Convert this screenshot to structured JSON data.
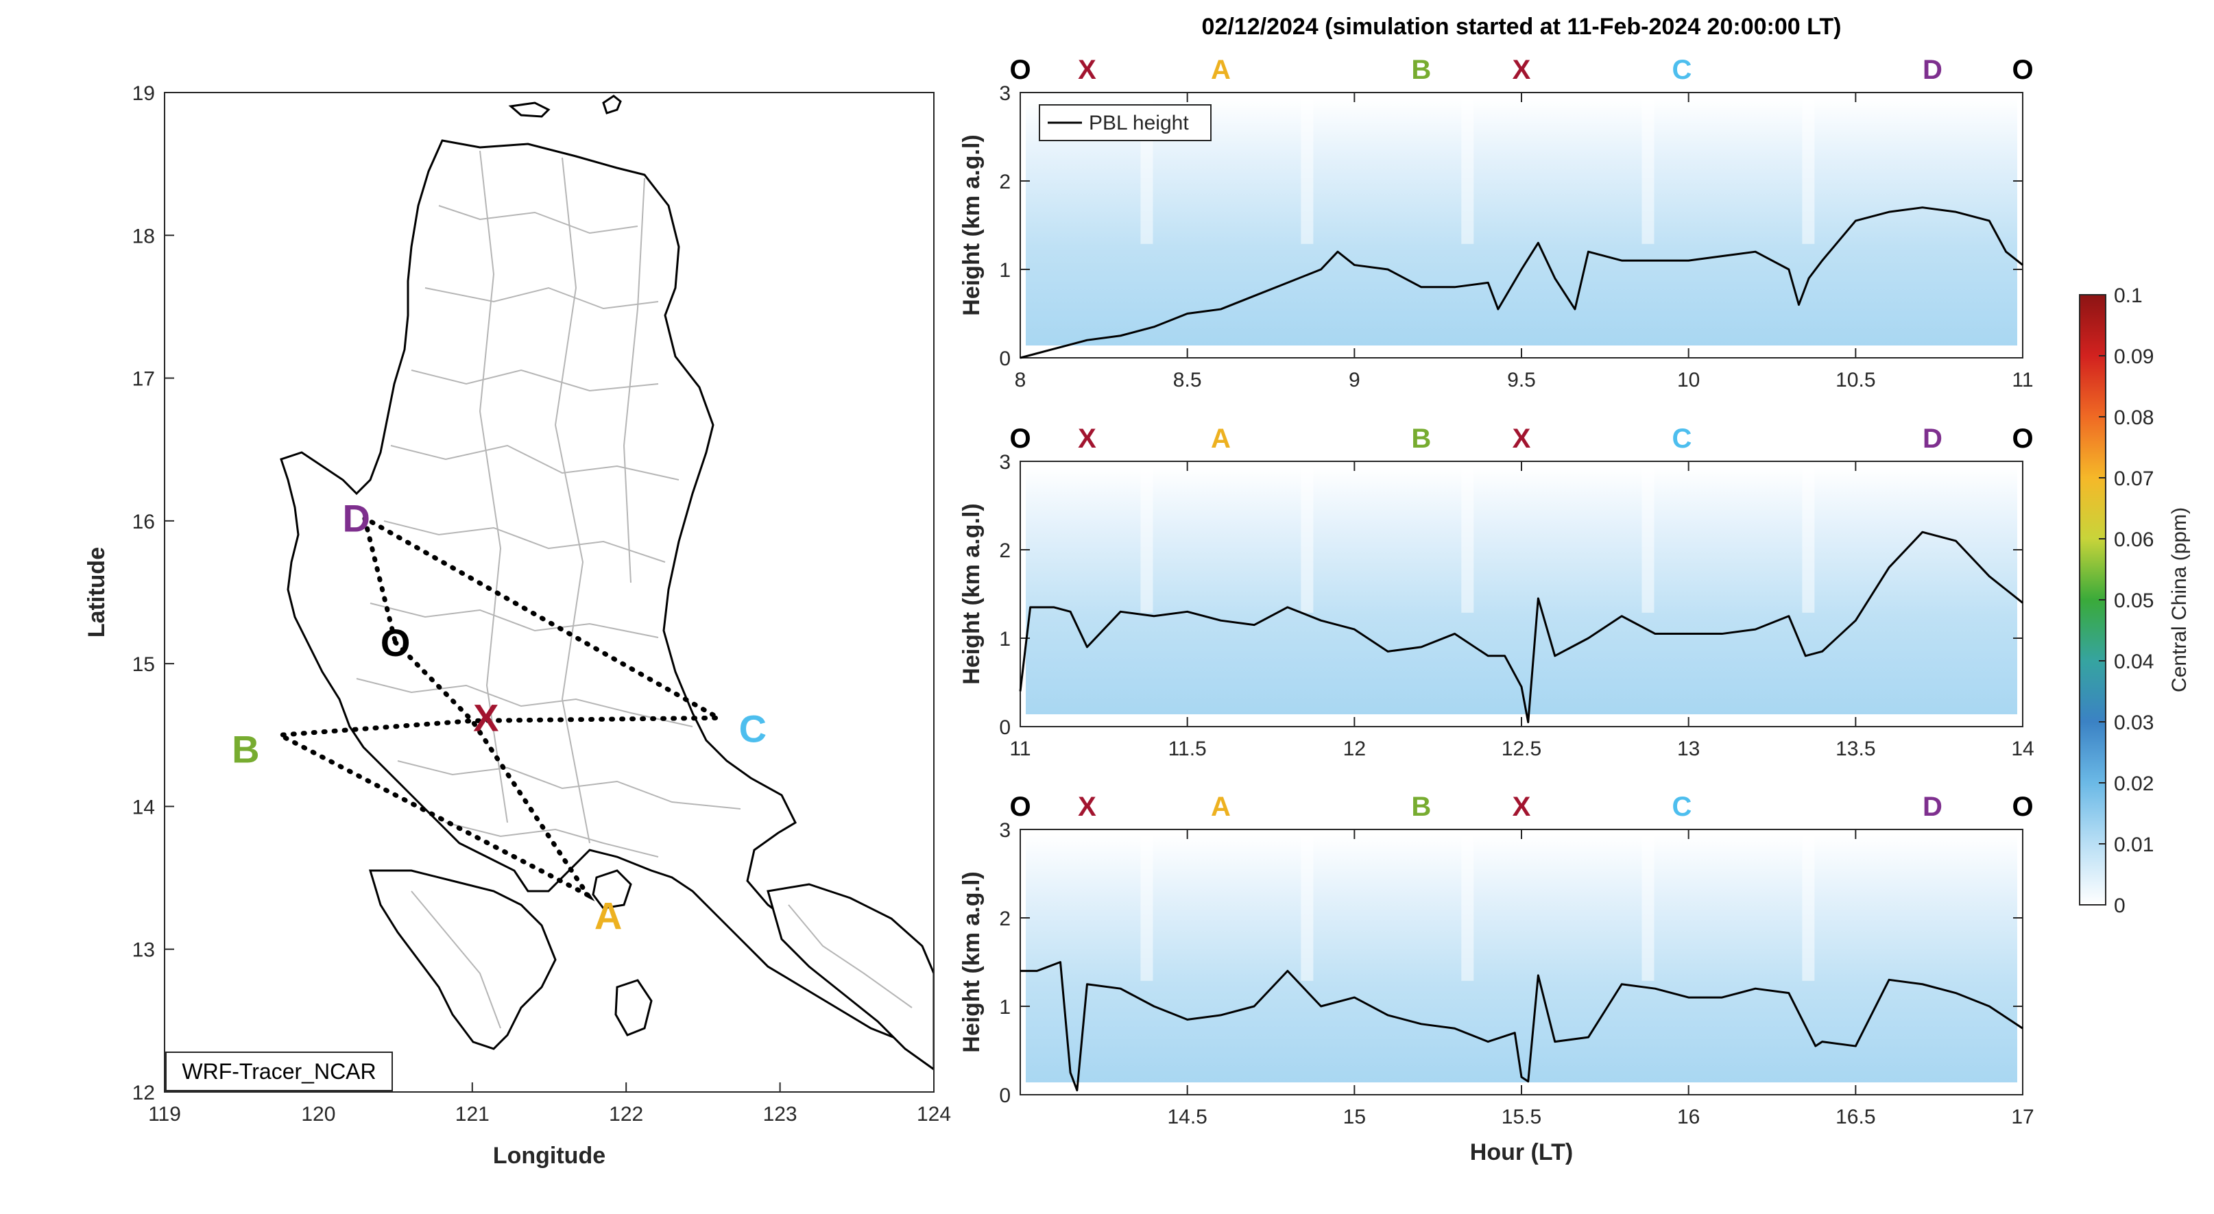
{
  "figure": {
    "title": "02/12/2024 (simulation started at 11-Feb-2024 20:00:00 LT)"
  },
  "map": {
    "xlabel": "Longitude",
    "ylabel": "Latitude",
    "xlim": [
      119,
      124
    ],
    "ylim": [
      12,
      19
    ],
    "xticks": [
      "119",
      "120",
      "121",
      "122",
      "123",
      "124"
    ],
    "yticks": [
      "12",
      "13",
      "14",
      "15",
      "16",
      "17",
      "18",
      "19"
    ],
    "model_label": "WRF-Tracer_NCAR",
    "points": [
      {
        "label": "O",
        "lon": 120.5,
        "lat": 15.15,
        "color": "#000000"
      },
      {
        "label": "X",
        "lon": 121.0,
        "lat": 14.6,
        "color": "#A2142F"
      },
      {
        "label": "A",
        "lon": 121.75,
        "lat": 13.38,
        "color": "#EDB120"
      },
      {
        "label": "B",
        "lon": 119.75,
        "lat": 14.5,
        "color": "#77AC30"
      },
      {
        "label": "C",
        "lon": 122.6,
        "lat": 14.62,
        "color": "#4DBEEE"
      },
      {
        "label": "D",
        "lon": 120.3,
        "lat": 16.02,
        "color": "#7E2F8E"
      }
    ],
    "route": [
      "O",
      "X",
      "A",
      "B",
      "X",
      "C",
      "D",
      "O"
    ]
  },
  "colorbar": {
    "label": "Central China (ppm)",
    "ticks": [
      "0",
      "0.01",
      "0.02",
      "0.03",
      "0.04",
      "0.05",
      "0.06",
      "0.07",
      "0.08",
      "0.09",
      "0.1"
    ],
    "range": [
      0,
      0.1
    ]
  },
  "chart_data": [
    {
      "type": "line",
      "legend": "PBL height",
      "ylabel": "Height (km a.g.l)",
      "xlim": [
        8,
        11
      ],
      "ylim": [
        0,
        3
      ],
      "xticks": [
        "8",
        "8.5",
        "9",
        "9.5",
        "10",
        "10.5",
        "11"
      ],
      "yticks": [
        "0",
        "1",
        "2",
        "3"
      ],
      "waypoints": [
        {
          "label": "O",
          "x": 8.0,
          "color": "#000000"
        },
        {
          "label": "X",
          "x": 8.2,
          "color": "#A2142F"
        },
        {
          "label": "A",
          "x": 8.6,
          "color": "#EDB120"
        },
        {
          "label": "B",
          "x": 9.2,
          "color": "#77AC30"
        },
        {
          "label": "X",
          "x": 9.5,
          "color": "#A2142F"
        },
        {
          "label": "C",
          "x": 9.98,
          "color": "#4DBEEE"
        },
        {
          "label": "D",
          "x": 10.73,
          "color": "#7E2F8E"
        },
        {
          "label": "O",
          "x": 11.0,
          "color": "#000000"
        }
      ],
      "x": [
        8.0,
        8.1,
        8.2,
        8.3,
        8.4,
        8.5,
        8.6,
        8.7,
        8.8,
        8.9,
        8.95,
        9.0,
        9.1,
        9.2,
        9.3,
        9.4,
        9.43,
        9.5,
        9.55,
        9.6,
        9.66,
        9.7,
        9.8,
        9.9,
        10.0,
        10.1,
        10.2,
        10.3,
        10.33,
        10.36,
        10.4,
        10.5,
        10.6,
        10.7,
        10.8,
        10.9,
        10.95,
        11.0
      ],
      "y": [
        0.0,
        0.1,
        0.2,
        0.25,
        0.35,
        0.5,
        0.55,
        0.7,
        0.85,
        1.0,
        1.2,
        1.05,
        1.0,
        0.8,
        0.8,
        0.85,
        0.55,
        1.0,
        1.3,
        0.9,
        0.55,
        1.2,
        1.1,
        1.1,
        1.1,
        1.15,
        1.2,
        1.0,
        0.6,
        0.9,
        1.1,
        1.55,
        1.65,
        1.7,
        1.65,
        1.55,
        1.2,
        1.05
      ]
    },
    {
      "type": "line",
      "legend": "",
      "ylabel": "Height (km a.g.l)",
      "xlim": [
        11,
        14
      ],
      "ylim": [
        0,
        3
      ],
      "xticks": [
        "11",
        "11.5",
        "12",
        "12.5",
        "13",
        "13.5",
        "14"
      ],
      "yticks": [
        "0",
        "1",
        "2",
        "3"
      ],
      "waypoints": [
        {
          "label": "O",
          "x": 11.0,
          "color": "#000000"
        },
        {
          "label": "X",
          "x": 11.2,
          "color": "#A2142F"
        },
        {
          "label": "A",
          "x": 11.6,
          "color": "#EDB120"
        },
        {
          "label": "B",
          "x": 12.2,
          "color": "#77AC30"
        },
        {
          "label": "X",
          "x": 12.5,
          "color": "#A2142F"
        },
        {
          "label": "C",
          "x": 12.98,
          "color": "#4DBEEE"
        },
        {
          "label": "D",
          "x": 13.73,
          "color": "#7E2F8E"
        },
        {
          "label": "O",
          "x": 14.0,
          "color": "#000000"
        }
      ],
      "x": [
        11.0,
        11.03,
        11.1,
        11.15,
        11.2,
        11.3,
        11.4,
        11.5,
        11.6,
        11.7,
        11.8,
        11.9,
        12.0,
        12.1,
        12.2,
        12.3,
        12.4,
        12.45,
        12.5,
        12.52,
        12.55,
        12.6,
        12.7,
        12.8,
        12.9,
        13.0,
        13.1,
        13.2,
        13.3,
        13.35,
        13.4,
        13.5,
        13.6,
        13.7,
        13.8,
        13.9,
        14.0
      ],
      "y": [
        0.4,
        1.35,
        1.35,
        1.3,
        0.9,
        1.3,
        1.25,
        1.3,
        1.2,
        1.15,
        1.35,
        1.2,
        1.1,
        0.85,
        0.9,
        1.05,
        0.8,
        0.8,
        0.45,
        0.05,
        1.45,
        0.8,
        1.0,
        1.25,
        1.05,
        1.05,
        1.05,
        1.1,
        1.25,
        0.8,
        0.85,
        1.2,
        1.8,
        2.2,
        2.1,
        1.7,
        1.4
      ]
    },
    {
      "type": "line",
      "legend": "",
      "ylabel": "Height (km a.g.l)",
      "xlabel": "Hour (LT)",
      "xlim": [
        14,
        17
      ],
      "ylim": [
        0,
        3
      ],
      "xticks": [
        "14.5",
        "15",
        "15.5",
        "16",
        "16.5",
        "17"
      ],
      "yticks": [
        "0",
        "1",
        "2",
        "3"
      ],
      "waypoints": [
        {
          "label": "O",
          "x": 14.0,
          "color": "#000000"
        },
        {
          "label": "X",
          "x": 14.2,
          "color": "#A2142F"
        },
        {
          "label": "A",
          "x": 14.6,
          "color": "#EDB120"
        },
        {
          "label": "B",
          "x": 15.2,
          "color": "#77AC30"
        },
        {
          "label": "X",
          "x": 15.5,
          "color": "#A2142F"
        },
        {
          "label": "C",
          "x": 15.98,
          "color": "#4DBEEE"
        },
        {
          "label": "D",
          "x": 16.73,
          "color": "#7E2F8E"
        },
        {
          "label": "O",
          "x": 17.0,
          "color": "#000000"
        }
      ],
      "x": [
        14.0,
        14.05,
        14.12,
        14.15,
        14.17,
        14.2,
        14.3,
        14.4,
        14.5,
        14.6,
        14.7,
        14.8,
        14.9,
        15.0,
        15.1,
        15.2,
        15.3,
        15.4,
        15.48,
        15.5,
        15.52,
        15.55,
        15.6,
        15.7,
        15.8,
        15.9,
        16.0,
        16.1,
        16.2,
        16.3,
        16.38,
        16.4,
        16.5,
        16.6,
        16.7,
        16.8,
        16.9,
        17.0
      ],
      "y": [
        1.4,
        1.4,
        1.5,
        0.25,
        0.05,
        1.25,
        1.2,
        1.0,
        0.85,
        0.9,
        1.0,
        1.4,
        1.0,
        1.1,
        0.9,
        0.8,
        0.75,
        0.6,
        0.7,
        0.2,
        0.15,
        1.35,
        0.6,
        0.65,
        1.25,
        1.2,
        1.1,
        1.1,
        1.2,
        1.15,
        0.55,
        0.6,
        0.55,
        1.3,
        1.25,
        1.15,
        1.0,
        0.75
      ]
    }
  ]
}
